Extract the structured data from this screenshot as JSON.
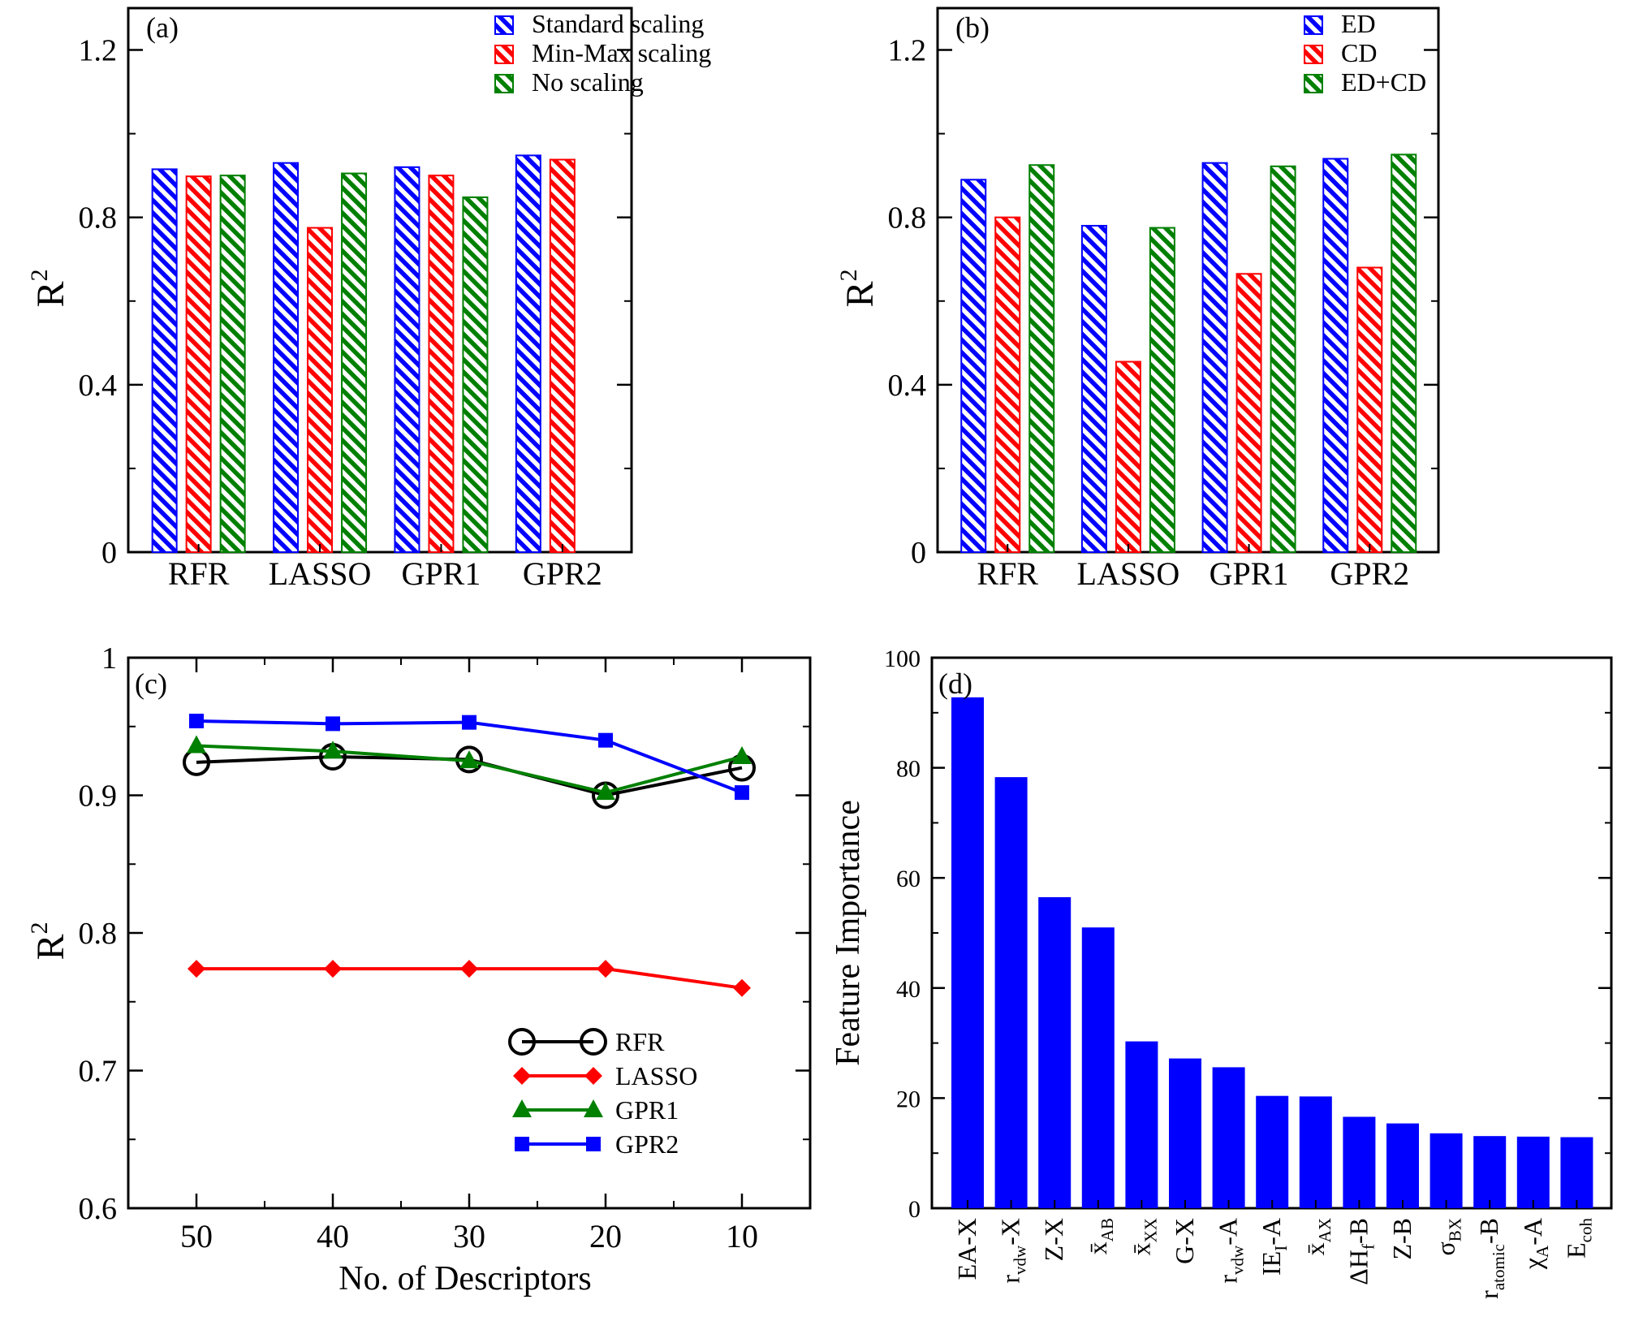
{
  "colors": {
    "blue": "#0000ff",
    "red": "#ff0000",
    "green": "#008000",
    "black": "#000000"
  },
  "chart_data": [
    {
      "panel": "(a)",
      "type": "bar",
      "ylabel": "R",
      "ylabel_sup": "2",
      "categories": [
        "RFR",
        "LASSO",
        "GPR1",
        "GPR2"
      ],
      "yticks": [
        "0",
        "0.4",
        "0.8",
        "1.2"
      ],
      "ylim": [
        0,
        1.3
      ],
      "pattern": "hatched",
      "legend_position": "top-right",
      "series": [
        {
          "name": "Standard scaling",
          "color": "#0000ff",
          "values": [
            0.915,
            0.93,
            0.92,
            0.948
          ]
        },
        {
          "name": "Min-Max scaling",
          "color": "#ff0000",
          "values": [
            0.898,
            0.775,
            0.9,
            0.938
          ]
        },
        {
          "name": "No scaling",
          "color": "#008000",
          "values": [
            0.9,
            0.905,
            0.848,
            null
          ]
        }
      ]
    },
    {
      "panel": "(b)",
      "type": "bar",
      "ylabel": "R",
      "ylabel_sup": "2",
      "categories": [
        "RFR",
        "LASSO",
        "GPR1",
        "GPR2"
      ],
      "yticks": [
        "0",
        "0.4",
        "0.8",
        "1.2"
      ],
      "ylim": [
        0,
        1.3
      ],
      "pattern": "hatched",
      "legend_position": "top-right",
      "series": [
        {
          "name": "ED",
          "color": "#0000ff",
          "values": [
            0.89,
            0.78,
            0.93,
            0.94
          ]
        },
        {
          "name": "CD",
          "color": "#ff0000",
          "values": [
            0.8,
            0.455,
            0.665,
            0.68
          ]
        },
        {
          "name": "ED+CD",
          "color": "#008000",
          "values": [
            0.925,
            0.775,
            0.922,
            0.95
          ]
        }
      ]
    },
    {
      "panel": "(c)",
      "type": "line",
      "xlabel": "No. of Descriptors",
      "ylabel": "R",
      "ylabel_sup": "2",
      "x": [
        50,
        40,
        30,
        20,
        10
      ],
      "xtick_labels": [
        "50",
        "40",
        "30",
        "20",
        "10"
      ],
      "xlim": [
        55,
        5
      ],
      "yticks": [
        "0.6",
        "0.7",
        "0.8",
        "0.9",
        "1"
      ],
      "ylim": [
        0.6,
        1.0
      ],
      "legend_position": "bottom-right",
      "series": [
        {
          "name": "RFR",
          "color": "#000000",
          "marker": "open-circle",
          "values": [
            0.924,
            0.928,
            0.926,
            0.9,
            0.92
          ]
        },
        {
          "name": "LASSO",
          "color": "#ff0000",
          "marker": "diamond",
          "values": [
            0.774,
            0.774,
            0.774,
            0.774,
            0.76
          ]
        },
        {
          "name": "GPR1",
          "color": "#008000",
          "marker": "triangle",
          "values": [
            0.936,
            0.932,
            0.925,
            0.902,
            0.928
          ]
        },
        {
          "name": "GPR2",
          "color": "#0000ff",
          "marker": "square",
          "values": [
            0.954,
            0.952,
            0.953,
            0.94,
            0.902
          ]
        }
      ]
    },
    {
      "panel": "(d)",
      "type": "bar",
      "ylabel": "Feature Importance",
      "yticks": [
        "0",
        "20",
        "40",
        "60",
        "80",
        "100"
      ],
      "ylim": [
        0,
        100
      ],
      "color": "#0000ff",
      "categories": [
        {
          "main": "EA-X",
          "sub": "",
          "suffix": ""
        },
        {
          "main": "r",
          "sub": "vdw",
          "suffix": "-X"
        },
        {
          "main": "Z-X",
          "sub": "",
          "suffix": ""
        },
        {
          "main": "x̄",
          "sub": "AB",
          "suffix": ""
        },
        {
          "main": "x̄",
          "sub": "XX",
          "suffix": ""
        },
        {
          "main": "G-X",
          "sub": "",
          "suffix": ""
        },
        {
          "main": "r",
          "sub": "vdw",
          "suffix": "-A"
        },
        {
          "main": "IE",
          "sub": "I",
          "suffix": "-A"
        },
        {
          "main": "x̄",
          "sub": "AX",
          "suffix": ""
        },
        {
          "main": "ΔH",
          "sub": "f",
          "suffix": "-B"
        },
        {
          "main": "Z-B",
          "sub": "",
          "suffix": ""
        },
        {
          "main": "σ",
          "sub": "BX",
          "suffix": ""
        },
        {
          "main": "r",
          "sub": "atomic",
          "suffix": "-B"
        },
        {
          "main": "χ",
          "sub": "A",
          "suffix": "-A"
        },
        {
          "main": "E",
          "sub": "coh",
          "suffix": ""
        }
      ],
      "values": [
        92.8,
        78.3,
        56.5,
        51.0,
        30.3,
        27.2,
        25.6,
        20.4,
        20.3,
        16.6,
        15.4,
        13.6,
        13.1,
        13.0,
        12.9
      ]
    }
  ]
}
